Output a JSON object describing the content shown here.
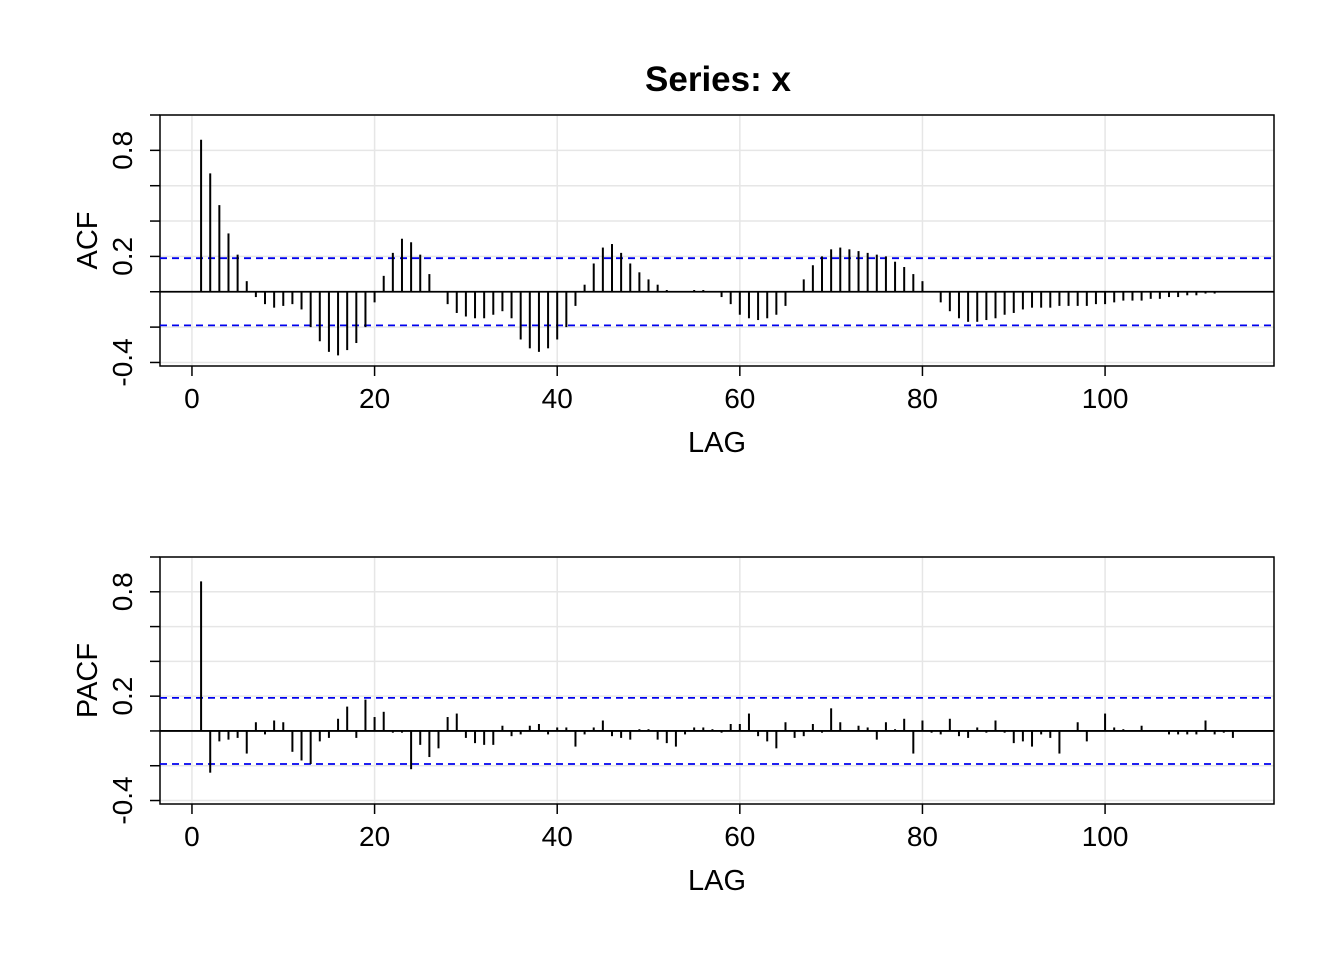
{
  "title": "Series:  x",
  "colors": {
    "bar": "#000000",
    "bound": "#0000ee",
    "grid": "#e6e6e6"
  },
  "chart_data": [
    {
      "type": "bar",
      "title": "Series:  x",
      "xlabel": "LAG",
      "ylabel": "ACF",
      "xlim": [
        -3.5,
        118.5
      ],
      "ylim": [
        -0.42,
        1.0
      ],
      "xticks": [
        0,
        20,
        40,
        60,
        80,
        100
      ],
      "xtick_labels": [
        "0",
        "20",
        "40",
        "60",
        "80",
        "100"
      ],
      "yticks": [
        -0.4,
        0.2,
        0.8
      ],
      "ytick_labels": [
        "-0.4",
        "0.2",
        "0.8"
      ],
      "ygrid_step": 0.2,
      "grid": true,
      "bounds": [
        0.19,
        -0.19
      ],
      "lags": [
        1,
        2,
        3,
        4,
        5,
        6,
        7,
        8,
        9,
        10,
        11,
        12,
        13,
        14,
        15,
        16,
        17,
        18,
        19,
        20,
        21,
        22,
        23,
        24,
        25,
        26,
        27,
        28,
        29,
        30,
        31,
        32,
        33,
        34,
        35,
        36,
        37,
        38,
        39,
        40,
        41,
        42,
        43,
        44,
        45,
        46,
        47,
        48,
        49,
        50,
        51,
        52,
        53,
        54,
        55,
        56,
        57,
        58,
        59,
        60,
        61,
        62,
        63,
        64,
        65,
        66,
        67,
        68,
        69,
        70,
        71,
        72,
        73,
        74,
        75,
        76,
        77,
        78,
        79,
        80,
        81,
        82,
        83,
        84,
        85,
        86,
        87,
        88,
        89,
        90,
        91,
        92,
        93,
        94,
        95,
        96,
        97,
        98,
        99,
        100,
        101,
        102,
        103,
        104,
        105,
        106,
        107,
        108,
        109,
        110,
        111,
        112,
        113,
        114
      ],
      "values": [
        0.86,
        0.67,
        0.49,
        0.33,
        0.21,
        0.06,
        -0.03,
        -0.07,
        -0.09,
        -0.08,
        -0.07,
        -0.1,
        -0.2,
        -0.28,
        -0.34,
        -0.36,
        -0.33,
        -0.29,
        -0.2,
        -0.06,
        0.09,
        0.22,
        0.3,
        0.28,
        0.21,
        0.1,
        0.0,
        -0.07,
        -0.12,
        -0.14,
        -0.15,
        -0.15,
        -0.13,
        -0.11,
        -0.15,
        -0.27,
        -0.32,
        -0.34,
        -0.32,
        -0.27,
        -0.2,
        -0.08,
        0.04,
        0.16,
        0.25,
        0.27,
        0.22,
        0.16,
        0.11,
        0.07,
        0.04,
        0.01,
        0.0,
        0.0,
        0.01,
        0.01,
        0.0,
        -0.03,
        -0.07,
        -0.13,
        -0.15,
        -0.16,
        -0.15,
        -0.13,
        -0.08,
        0.0,
        0.07,
        0.15,
        0.2,
        0.24,
        0.25,
        0.24,
        0.23,
        0.22,
        0.21,
        0.2,
        0.17,
        0.14,
        0.1,
        0.06,
        0.0,
        -0.06,
        -0.11,
        -0.15,
        -0.17,
        -0.17,
        -0.16,
        -0.15,
        -0.13,
        -0.12,
        -0.1,
        -0.09,
        -0.09,
        -0.09,
        -0.08,
        -0.08,
        -0.08,
        -0.08,
        -0.07,
        -0.07,
        -0.06,
        -0.05,
        -0.05,
        -0.05,
        -0.04,
        -0.04,
        -0.03,
        -0.03,
        -0.02,
        -0.02,
        -0.01,
        -0.01,
        0.0,
        0.0
      ]
    },
    {
      "type": "bar",
      "xlabel": "LAG",
      "ylabel": "PACF",
      "xlim": [
        -3.5,
        118.5
      ],
      "ylim": [
        -0.42,
        1.0
      ],
      "xticks": [
        0,
        20,
        40,
        60,
        80,
        100
      ],
      "xtick_labels": [
        "0",
        "20",
        "40",
        "60",
        "80",
        "100"
      ],
      "yticks": [
        -0.4,
        0.2,
        0.8
      ],
      "ytick_labels": [
        "-0.4",
        "0.2",
        "0.8"
      ],
      "ygrid_step": 0.2,
      "grid": true,
      "bounds": [
        0.19,
        -0.19
      ],
      "lags": [
        1,
        2,
        3,
        4,
        5,
        6,
        7,
        8,
        9,
        10,
        11,
        12,
        13,
        14,
        15,
        16,
        17,
        18,
        19,
        20,
        21,
        22,
        23,
        24,
        25,
        26,
        27,
        28,
        29,
        30,
        31,
        32,
        33,
        34,
        35,
        36,
        37,
        38,
        39,
        40,
        41,
        42,
        43,
        44,
        45,
        46,
        47,
        48,
        49,
        50,
        51,
        52,
        53,
        54,
        55,
        56,
        57,
        58,
        59,
        60,
        61,
        62,
        63,
        64,
        65,
        66,
        67,
        68,
        69,
        70,
        71,
        72,
        73,
        74,
        75,
        76,
        77,
        78,
        79,
        80,
        81,
        82,
        83,
        84,
        85,
        86,
        87,
        88,
        89,
        90,
        91,
        92,
        93,
        94,
        95,
        96,
        97,
        98,
        99,
        100,
        101,
        102,
        103,
        104,
        105,
        106,
        107,
        108,
        109,
        110,
        111,
        112,
        113,
        114
      ],
      "values": [
        0.86,
        -0.24,
        -0.06,
        -0.05,
        -0.04,
        -0.13,
        0.05,
        -0.02,
        0.06,
        0.05,
        -0.12,
        -0.17,
        -0.19,
        -0.06,
        -0.04,
        0.07,
        0.14,
        -0.04,
        0.18,
        0.08,
        0.11,
        -0.01,
        -0.01,
        -0.22,
        -0.08,
        -0.15,
        -0.1,
        0.08,
        0.1,
        -0.04,
        -0.07,
        -0.08,
        -0.08,
        0.03,
        -0.03,
        -0.02,
        0.03,
        0.04,
        -0.02,
        0.02,
        0.02,
        -0.09,
        -0.02,
        0.02,
        0.06,
        -0.03,
        -0.04,
        -0.05,
        0.01,
        0.01,
        -0.05,
        -0.07,
        -0.09,
        -0.02,
        0.02,
        0.02,
        0.01,
        -0.01,
        0.04,
        0.04,
        0.1,
        -0.03,
        -0.06,
        -0.1,
        0.05,
        -0.04,
        -0.03,
        0.04,
        -0.01,
        0.13,
        0.05,
        0.0,
        0.03,
        0.02,
        -0.05,
        0.05,
        0.01,
        0.07,
        -0.13,
        0.06,
        -0.01,
        -0.02,
        0.07,
        -0.03,
        -0.04,
        0.02,
        -0.01,
        0.06,
        -0.01,
        -0.07,
        -0.06,
        -0.09,
        -0.02,
        -0.04,
        -0.13,
        0.0,
        0.05,
        -0.06,
        0.0,
        0.1,
        0.02,
        0.01,
        0.0,
        0.03,
        0.0,
        0.0,
        -0.02,
        -0.02,
        -0.02,
        -0.02,
        0.06,
        -0.02,
        -0.01,
        -0.04
      ]
    }
  ]
}
